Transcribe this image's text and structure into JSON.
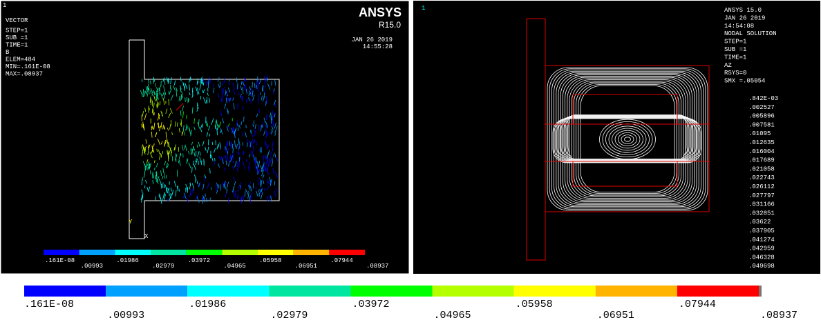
{
  "left_panel": {
    "window_number": "1",
    "info": [
      "VECTOR",
      "STEP=1",
      "SUB =1",
      "TIME=1",
      "B",
      "ELEM=484",
      "MIN=.161E-08",
      "MAX=.08937"
    ],
    "logo": "ANSYS",
    "version": "R15.0",
    "date": "JAN 26 2019",
    "time": "14:55:28",
    "axis_y": "Y",
    "axis_x": "X",
    "legend_labels": [
      ".161E-08",
      ".00993",
      ".01986",
      ".02979",
      ".03972",
      ".04965",
      ".05958",
      ".06951",
      ".07944",
      ".08937"
    ]
  },
  "right_panel": {
    "window_number": "1",
    "info": [
      "ANSYS 15.0",
      "JAN 26 2019",
      "14:54:08",
      "NODAL SOLUTION",
      "STEP=1",
      "SUB =1",
      "TIME=1",
      "AZ",
      "RSYS=0",
      "SMX =.05054"
    ],
    "contour_values": [
      ".842E-03",
      ".002527",
      ".005896",
      ".007581",
      ".01095",
      ".012635",
      ".016004",
      ".017689",
      ".021058",
      ".022743",
      ".026112",
      ".027797",
      ".031166",
      ".032851",
      ".03622",
      ".037905",
      ".041274",
      ".042959",
      ".046328",
      ".049698"
    ]
  },
  "colorbar": {
    "colors": [
      "#0000ff",
      "#00a0ff",
      "#00ffff",
      "#00e6a0",
      "#00ff00",
      "#b4ff00",
      "#ffff00",
      "#ffb400",
      "#ff0000"
    ],
    "labels": [
      ".161E-08",
      ".00993",
      ".01986",
      ".02979",
      ".03972",
      ".04965",
      ".05958",
      ".06951",
      ".07944",
      ".08937"
    ]
  }
}
